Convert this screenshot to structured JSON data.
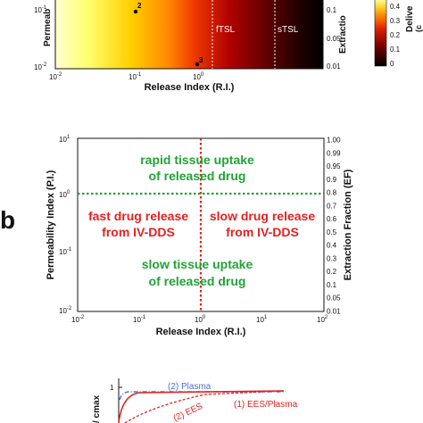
{
  "panel_b_label": "b",
  "colors": {
    "green": "#21a336",
    "red": "#e32222",
    "blue": "#4a6fd6",
    "black": "#111111"
  },
  "chart_data": [
    {
      "type": "heatmap",
      "panel": "a",
      "xlabel": "Release Index (R.I.)",
      "ylabel": "Permeab",
      "y2label": "Extractio",
      "colorbar_label": "Delive",
      "colorbar_sub": "(c",
      "colorbar_ticks": [
        "0.4",
        "0.3",
        "0.2",
        "0.1",
        "0"
      ],
      "x_ticks": [
        "10",
        "10",
        "10"
      ],
      "x_tick_exps": [
        "-2",
        "-1",
        "0"
      ],
      "y_ticks": [
        "10",
        "10"
      ],
      "y_tick_exps": [
        "-1",
        "-2"
      ],
      "y2_ticks": [
        "0.1",
        "0.05",
        "0.01"
      ],
      "annotations": [
        "fTSL",
        "sTSL"
      ],
      "points": [
        {
          "label": "2",
          "x": 0.1,
          "y": 0.09
        },
        {
          "label": "3",
          "x": 0.9,
          "y": 0.011
        }
      ]
    },
    {
      "type": "scatter",
      "panel": "b",
      "xscale": "log",
      "yscale": "log",
      "xlabel": "Release Index (R.I.)",
      "ylabel": "Permeability Index (P.I.)",
      "y2label": "Extraction Fraction (EF)",
      "xlim": [
        0.01,
        100
      ],
      "ylim": [
        0.01,
        10
      ],
      "x_ticks": [
        "10",
        "10",
        "10",
        "10",
        "10"
      ],
      "x_tick_exps": [
        "-2",
        "-1",
        "0",
        "1",
        "2"
      ],
      "y_ticks": [
        "10",
        "10",
        "10",
        "10"
      ],
      "y_tick_exps": [
        "1",
        "0",
        "-1",
        "-2"
      ],
      "y2_ticks": [
        "1.00",
        "0.99",
        "0.95",
        "0.9",
        "0.8",
        "0.7",
        "0.6",
        "0.5",
        "0.4",
        "0.3",
        "0.2",
        "0.1",
        "0.05",
        "0.01"
      ],
      "vline_x": 1,
      "hline_y": 1,
      "regions": [
        {
          "lines": [
            "rapid tissue uptake",
            "of released drug"
          ],
          "color": "green"
        },
        {
          "lines": [
            "fast drug release",
            "from IV-DDS"
          ],
          "color": "red"
        },
        {
          "lines": [
            "slow drug release",
            "from IV-DDS"
          ],
          "color": "red"
        },
        {
          "lines": [
            "slow tissue uptake",
            "of released drug"
          ],
          "color": "green"
        }
      ]
    },
    {
      "type": "line",
      "panel": "c",
      "ylabel": "/ cmax",
      "y_ticks": [
        "1"
      ],
      "series": [
        {
          "name": "(2) Plasma",
          "color": "blue"
        },
        {
          "name": "(1) EES/Plasma",
          "color": "red"
        },
        {
          "name": "(2) EES",
          "color": "red"
        }
      ]
    }
  ]
}
